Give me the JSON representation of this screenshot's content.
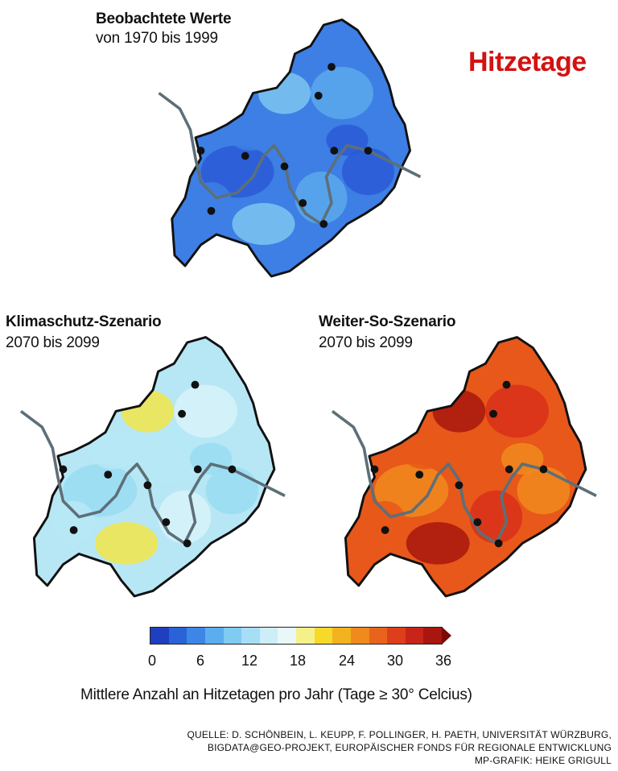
{
  "title": "Hitzetage",
  "maps": [
    {
      "id": "observed",
      "title": "Beobachtete Werte",
      "subtitle": "von 1970 bis 1999",
      "mean_days": 4,
      "palette": [
        "#2a5bd6",
        "#3d7fe4",
        "#5ba9ec",
        "#7cc6f0"
      ]
    },
    {
      "id": "climate-protection",
      "title": "Klimaschutz-Szenario",
      "subtitle": "2070 bis 2099",
      "mean_days": 14,
      "palette": [
        "#9adcf2",
        "#b7e7f5",
        "#d8f2f8",
        "#f2e54a"
      ]
    },
    {
      "id": "business-as-usual",
      "title": "Weiter-So-Szenario",
      "subtitle": "2070 bis 2099",
      "mean_days": 28,
      "palette": [
        "#f08a1d",
        "#e8581a",
        "#d8301a",
        "#a8160f"
      ]
    }
  ],
  "legend": {
    "ticks": [
      "0",
      "6",
      "12",
      "18",
      "24",
      "30",
      "36"
    ],
    "range": [
      0,
      36
    ],
    "colors": [
      "#1f3fbf",
      "#2a62d8",
      "#3d86e6",
      "#5aaef0",
      "#7fcbf2",
      "#a6def6",
      "#cdeef8",
      "#e9f7f9",
      "#f6f08a",
      "#f7d92a",
      "#f3b21f",
      "#f08a1d",
      "#e8641c",
      "#dd3f1a",
      "#c9241a",
      "#a8160f"
    ],
    "caption": "Mittlere Anzahl an Hitzetagen pro Jahr (Tage ≥ 30° Celcius)"
  },
  "source": {
    "line1": "QUELLE: D. SCHÖNBEIN, L. KEUPP, F. POLLINGER, H. PAETH, UNIVERSITÄT WÜRZBURG,",
    "line2": "BIGDATA@GEO-PROJEKT, EUROPÄISCHER FONDS FÜR REGIONALE ENTWICKLUNG",
    "line3": "MP-GRAFIK: HEIKE GRIGULL"
  }
}
